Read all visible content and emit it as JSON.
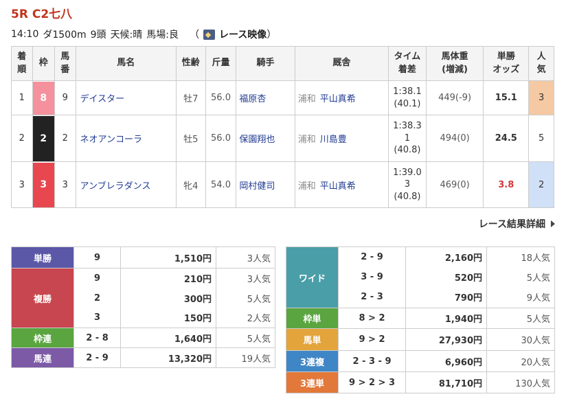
{
  "race": {
    "title": "5R C2七八",
    "time": "14:10",
    "course": "ダ1500m",
    "heads": "9頭",
    "weather": "天候:晴",
    "track": "馬場:良",
    "video_open": "（",
    "video_label": "レース映像",
    "video_close": "）"
  },
  "table_headers": {
    "rank": [
      "着",
      "順"
    ],
    "waku": "枠",
    "num": [
      "馬",
      "番"
    ],
    "name": "馬名",
    "sexage": "性齢",
    "weight": "斤量",
    "jockey": "騎手",
    "stable": "厩舎",
    "time": [
      "タイム",
      "着差"
    ],
    "bodyweight": [
      "馬体重",
      "(増減)"
    ],
    "odds": [
      "単勝",
      "オッズ"
    ],
    "pop": [
      "人",
      "気"
    ]
  },
  "results": [
    {
      "rank": "1",
      "waku": "8",
      "num": "9",
      "name": "デイスター",
      "sexage": "牡7",
      "weight": "56.0",
      "jockey": "福原杏",
      "loc": "浦和",
      "trainer": "平山真希",
      "time": [
        "1:38.1",
        "(40.1)"
      ],
      "bodyweight": "449(-9)",
      "odds": "15.1",
      "pop": "3"
    },
    {
      "rank": "2",
      "waku": "2",
      "num": "2",
      "name": "ネオアンコーラ",
      "sexage": "牡5",
      "weight": "56.0",
      "jockey": "保園翔也",
      "loc": "浦和",
      "trainer": "川島豊",
      "time": [
        "1:38.3",
        "1",
        "(40.8)"
      ],
      "bodyweight": "494(0)",
      "odds": "24.5",
      "pop": "5"
    },
    {
      "rank": "3",
      "waku": "3",
      "num": "3",
      "name": "アンブレラダンス",
      "sexage": "牝4",
      "weight": "54.0",
      "jockey": "岡村健司",
      "loc": "浦和",
      "trainer": "平山真希",
      "time": [
        "1:39.0",
        "3",
        "(40.8)"
      ],
      "bodyweight": "469(0)",
      "odds": "3.8",
      "pop": "2"
    }
  ],
  "detail_link": "レース結果詳細",
  "payouts_left": [
    {
      "type": "単勝",
      "color": "#5b58a8",
      "rows": [
        {
          "num": "9",
          "amount": "1,510円",
          "pop": "3人気"
        }
      ]
    },
    {
      "type": "複勝",
      "color": "#c8464f",
      "rows": [
        {
          "num": "9",
          "amount": "210円",
          "pop": "3人気"
        },
        {
          "num": "2",
          "amount": "300円",
          "pop": "5人気"
        },
        {
          "num": "3",
          "amount": "150円",
          "pop": "2人気"
        }
      ]
    },
    {
      "type": "枠連",
      "color": "#5aa540",
      "rows": [
        {
          "num": "2 - 8",
          "amount": "1,640円",
          "pop": "5人気"
        }
      ]
    },
    {
      "type": "馬連",
      "color": "#7c5aa6",
      "rows": [
        {
          "num": "2 - 9",
          "amount": "13,320円",
          "pop": "19人気"
        }
      ]
    }
  ],
  "payouts_right": [
    {
      "type": "ワイド",
      "color": "#4a9ea8",
      "rows": [
        {
          "num": "2 - 9",
          "amount": "2,160円",
          "pop": "18人気"
        },
        {
          "num": "3 - 9",
          "amount": "520円",
          "pop": "5人気"
        },
        {
          "num": "2 - 3",
          "amount": "790円",
          "pop": "9人気"
        }
      ]
    },
    {
      "type": "枠単",
      "color": "#5aa540",
      "rows": [
        {
          "num": "8 > 2",
          "amount": "1,940円",
          "pop": "5人気"
        }
      ]
    },
    {
      "type": "馬単",
      "color": "#e3a43c",
      "rows": [
        {
          "num": "9 > 2",
          "amount": "27,930円",
          "pop": "30人気"
        }
      ]
    },
    {
      "type": "3連複",
      "color": "#3f86c6",
      "rows": [
        {
          "num": "2 - 3 - 9",
          "amount": "6,960円",
          "pop": "20人気"
        }
      ]
    },
    {
      "type": "3連単",
      "color": "#e2783a",
      "rows": [
        {
          "num": "9 > 2 > 3",
          "amount": "81,710円",
          "pop": "130人気"
        }
      ]
    }
  ],
  "colors": {
    "waku_8": "#f4919d",
    "waku_2": "#222222",
    "waku_3": "#e8474f",
    "pop_first_bg": "#f5c9a3",
    "pop_third_bg": "#cfe0f7",
    "fav_odds": "#d0393c"
  }
}
